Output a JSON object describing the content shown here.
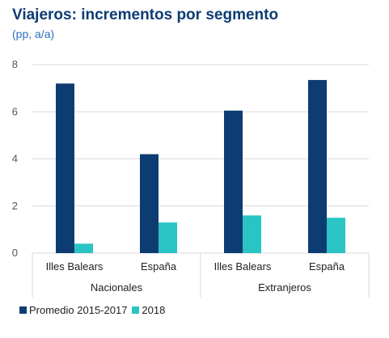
{
  "header": {
    "title": "Viajeros: incrementos por segmento",
    "subtitle": "(pp, a/a)"
  },
  "colors": {
    "series_1": "#0d3c73",
    "series_2": "#2ac4c4",
    "title": "#0d3c73",
    "subtitle": "#2b6fc0",
    "grid": "#d9d9d9",
    "axis_text": "#555555"
  },
  "chart_data": {
    "type": "bar",
    "title": "Viajeros: incrementos por segmento",
    "subtitle": "(pp, a/a)",
    "xlabel": "",
    "ylabel": "",
    "ylim": [
      0,
      8
    ],
    "yticks": [
      0,
      2,
      4,
      6,
      8
    ],
    "grid": true,
    "legend_position": "bottom-left",
    "categories": [
      "Illes Balears",
      "España",
      "Illes Balears",
      "España"
    ],
    "groups": [
      {
        "label": "Nacionales",
        "categories": [
          "Illes Balears",
          "España"
        ]
      },
      {
        "label": "Extranjeros",
        "categories": [
          "Illes Balears",
          "España"
        ]
      }
    ],
    "series": [
      {
        "name": "Promedio 2015-2017",
        "values": [
          7.2,
          4.2,
          6.05,
          7.35
        ]
      },
      {
        "name": "2018",
        "values": [
          0.4,
          1.3,
          1.6,
          1.5
        ]
      }
    ]
  }
}
